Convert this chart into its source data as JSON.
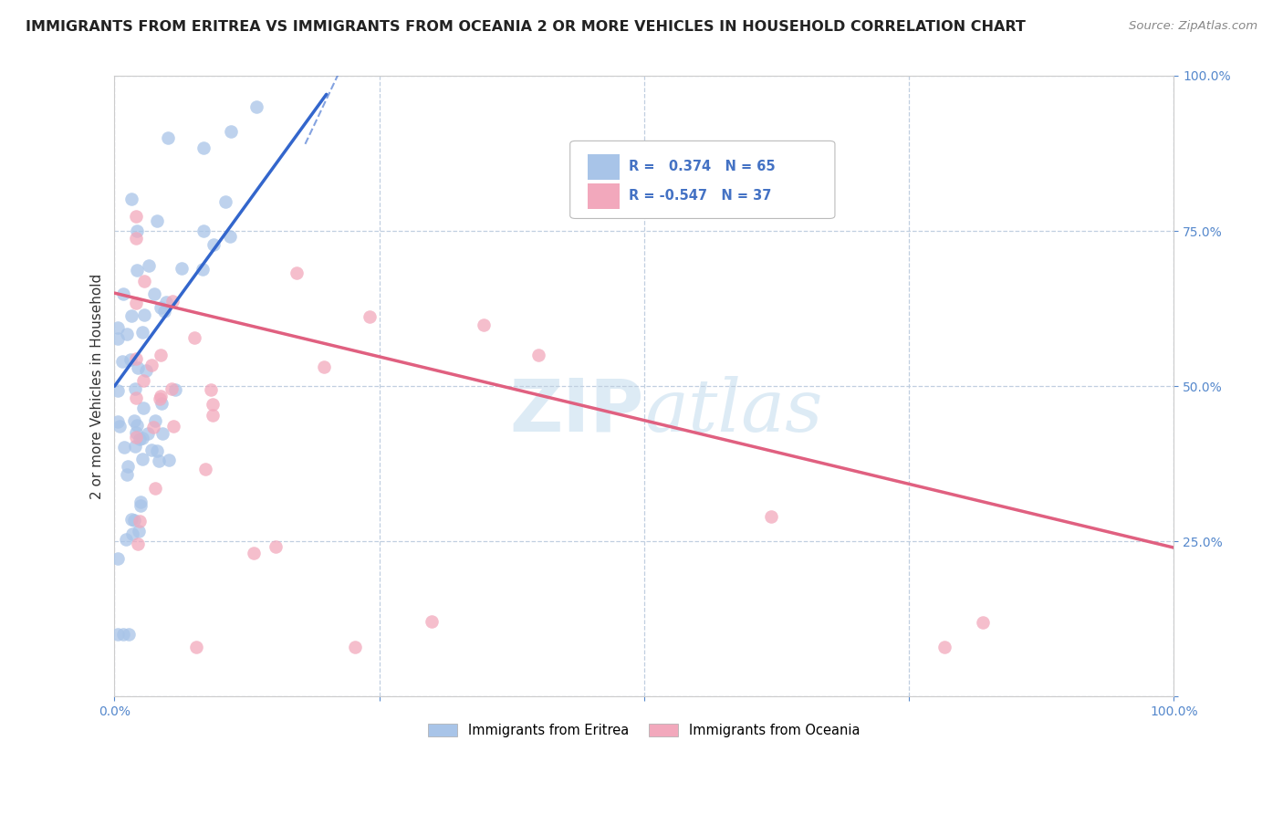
{
  "title": "IMMIGRANTS FROM ERITREA VS IMMIGRANTS FROM OCEANIA 2 OR MORE VEHICLES IN HOUSEHOLD CORRELATION CHART",
  "source": "Source: ZipAtlas.com",
  "ylabel": "2 or more Vehicles in Household",
  "xlim": [
    0.0,
    1.0
  ],
  "ylim": [
    0.0,
    1.0
  ],
  "bottom_legend1": "Immigrants from Eritrea",
  "bottom_legend2": "Immigrants from Oceania",
  "eritrea_color": "#a8c4e8",
  "oceania_color": "#f2a8bc",
  "eritrea_line_color": "#3366cc",
  "oceania_line_color": "#e06080",
  "watermark_zip": "ZIP",
  "watermark_atlas": "atlas",
  "background_color": "#ffffff",
  "grid_color": "#c0cfe0",
  "eritrea_r": 0.374,
  "oceania_r": -0.547,
  "eritrea_n": 65,
  "oceania_n": 37,
  "legend_text_color": "#4472c4",
  "title_color": "#222222",
  "source_color": "#888888",
  "ylabel_color": "#333333",
  "tick_color": "#5588cc"
}
